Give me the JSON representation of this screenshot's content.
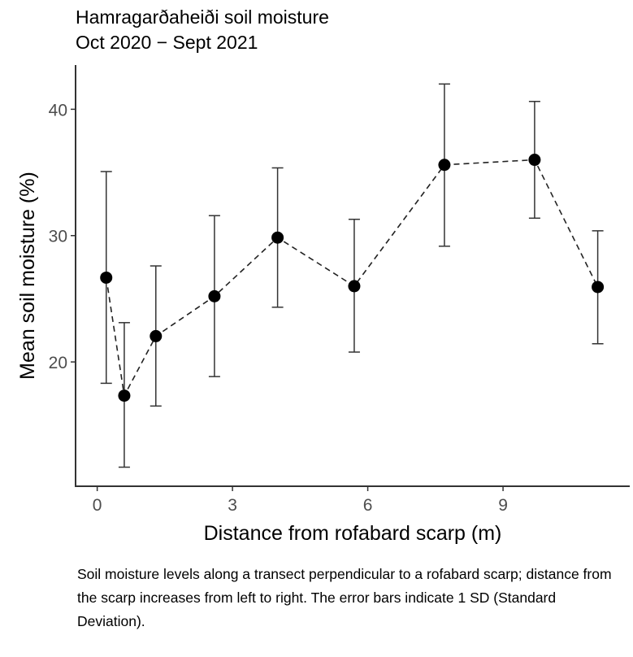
{
  "chart_data": {
    "type": "line",
    "title": "Hamragarðaheiði soil moisture",
    "subtitle": "Oct 2020 − Sept 2021",
    "xlabel": "Distance from rofabard scarp (m)",
    "ylabel": "Mean soil moisture (%)",
    "xlim": [
      -0.48,
      11.81
    ],
    "ylim": [
      10.16,
      43.5
    ],
    "xticks": [
      0,
      3,
      6,
      9
    ],
    "yticks": [
      20,
      30,
      40
    ],
    "grid": false,
    "line_style": "dashed",
    "error_bars": "1 SD",
    "series": [
      {
        "x": [
          0.2,
          0.6,
          1.3,
          2.6,
          4.0,
          5.7,
          7.7,
          9.7,
          11.1
        ],
        "y": [
          26.67,
          17.33,
          22.04,
          25.2,
          29.84,
          26.0,
          35.6,
          36.0,
          25.93
        ],
        "y_upper": [
          35.07,
          23.11,
          27.6,
          31.58,
          35.36,
          31.29,
          42.0,
          40.62,
          30.38
        ],
        "y_lower": [
          18.31,
          11.67,
          16.51,
          18.84,
          24.33,
          20.78,
          29.16,
          31.38,
          21.44
        ]
      }
    ],
    "colors": {
      "points": "#000000",
      "error_bars": "#333333",
      "axis": "#333333",
      "tick_labels": "#4d4d4d"
    }
  },
  "caption": "Soil moisture levels along a transect perpendicular to a rofabard scarp; distance from the scarp increases from left to right. The error bars indicate 1 SD (Standard Deviation)."
}
